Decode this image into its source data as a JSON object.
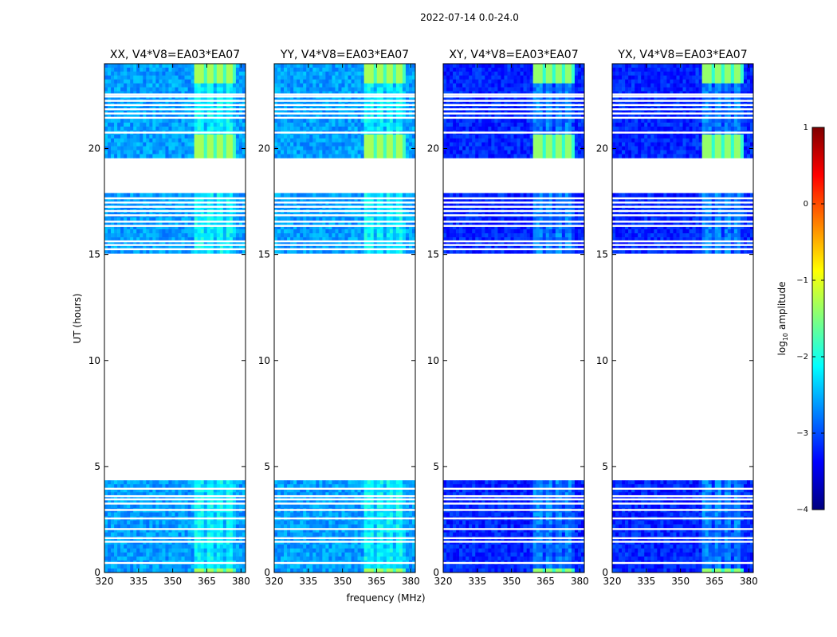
{
  "figure": {
    "suptitle": "2022-07-14 0.0-24.0",
    "ylabel": "UT (hours)",
    "xlabel": "frequency (MHz)"
  },
  "colorbar": {
    "label_prefix": "log",
    "label_subscript": "10",
    "label_suffix": " amplitude",
    "range": [
      -4,
      1
    ],
    "ticks": [
      {
        "value": 1,
        "label": "1"
      },
      {
        "value": 0,
        "label": "0"
      },
      {
        "value": -1,
        "label": "−1"
      },
      {
        "value": -2,
        "label": "−2"
      },
      {
        "value": -3,
        "label": "−3"
      },
      {
        "value": -4,
        "label": "−4"
      }
    ],
    "colormap": "jet",
    "colors": [
      "#00007f",
      "#0000ff",
      "#007fff",
      "#00ffff",
      "#7fff7f",
      "#ffff00",
      "#ff7f00",
      "#ff0000",
      "#7f0000"
    ]
  },
  "chart_data": [
    {
      "type": "heatmap",
      "title": "XX, V4*V8=EA03*EA07",
      "polarization": "XX",
      "xlim": [
        320,
        382
      ],
      "ylim": [
        0,
        24
      ],
      "xticks": [
        320,
        335,
        350,
        365,
        380
      ],
      "yticks": [
        0,
        5,
        10,
        15,
        20
      ],
      "base_log_amplitude": -2.6,
      "rfi_band_mhz": [
        360,
        378
      ],
      "rfi_band_log_amplitude_top": -1.3
    },
    {
      "type": "heatmap",
      "title": "YY, V4*V8=EA03*EA07",
      "polarization": "YY",
      "xlim": [
        320,
        382
      ],
      "ylim": [
        0,
        24
      ],
      "xticks": [
        320,
        335,
        350,
        365,
        380
      ],
      "yticks": [
        0,
        5,
        10,
        15,
        20
      ],
      "base_log_amplitude": -2.6,
      "rfi_band_mhz": [
        360,
        378
      ],
      "rfi_band_log_amplitude_top": -1.3
    },
    {
      "type": "heatmap",
      "title": "XY, V4*V8=EA03*EA07",
      "polarization": "XY",
      "xlim": [
        320,
        382
      ],
      "ylim": [
        0,
        24
      ],
      "xticks": [
        320,
        335,
        350,
        365,
        380
      ],
      "yticks": [
        0,
        5,
        10,
        15,
        20
      ],
      "base_log_amplitude": -3.2,
      "rfi_band_mhz": [
        360,
        378
      ],
      "rfi_band_log_amplitude_top": -1.4
    },
    {
      "type": "heatmap",
      "title": "YX, V4*V8=EA03*EA07",
      "polarization": "YX",
      "xlim": [
        320,
        382
      ],
      "ylim": [
        0,
        24
      ],
      "xticks": [
        320,
        335,
        350,
        365,
        380
      ],
      "yticks": [
        0,
        5,
        10,
        15,
        20
      ],
      "base_log_amplitude": -3.2,
      "rfi_band_mhz": [
        360,
        378
      ],
      "rfi_band_log_amplitude_top": -1.4
    }
  ],
  "data_segments_ut_hours": [
    [
      0,
      4.35
    ],
    [
      15.05,
      17.9
    ],
    [
      19.55,
      24.0
    ]
  ],
  "flagged_rows_ut_hours": [
    0.45,
    1.45,
    1.62,
    2.05,
    2.55,
    2.95,
    3.25,
    3.45,
    3.6,
    3.95,
    15.25,
    15.45,
    15.62,
    16.35,
    16.55,
    16.85,
    17.05,
    17.25,
    17.45,
    17.65,
    20.75,
    21.45,
    21.65,
    21.85,
    22.05,
    22.25,
    22.45,
    22.55
  ]
}
